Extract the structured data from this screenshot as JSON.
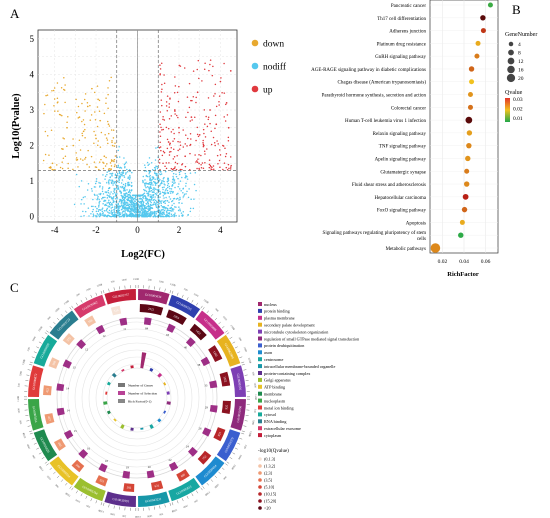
{
  "panel_labels": {
    "a": "A",
    "b": "B",
    "c": "C"
  },
  "colors": {
    "down": "#e8a92f",
    "nodiff": "#55c8ee",
    "up": "#e0393e"
  },
  "chart_data": [
    {
      "panel": "A",
      "type": "scatter",
      "title": "",
      "xlabel": "Log2(FC)",
      "ylabel": "Log10(Pvalue)",
      "xlim": [
        -4.8,
        4.8
      ],
      "ylim": [
        -0.15,
        5.25
      ],
      "x_ticks": [
        -4,
        -2,
        0,
        2,
        4
      ],
      "y_ticks": [
        0,
        1,
        2,
        3,
        4,
        5
      ],
      "grid": true,
      "threshold_lines": {
        "x": [
          -1,
          1
        ],
        "y": [
          1.3
        ]
      },
      "legend_position": "right",
      "series": [
        {
          "name": "down",
          "color": "#e8a92f",
          "n": 150,
          "points": [
            [
              -1.8,
              2.7
            ],
            [
              -2.4,
              3.1
            ],
            [
              -2.0,
              2.2
            ],
            [
              -1.4,
              2.6
            ],
            [
              -3.1,
              2.0
            ],
            [
              -2.9,
              1.6
            ],
            [
              -3.6,
              1.9
            ],
            [
              -1.9,
              3.3
            ],
            [
              -4.1,
              1.5
            ],
            [
              -2.6,
              2.4
            ],
            [
              -2.2,
              3.6
            ],
            [
              -1.2,
              2.0
            ],
            [
              -3.4,
              2.5
            ],
            [
              -2.8,
              2.8
            ],
            [
              -1.6,
              1.7
            ]
          ]
        },
        {
          "name": "nodiff",
          "color": "#55c8ee",
          "n": 1400
        },
        {
          "name": "up",
          "color": "#e0393e",
          "n": 230,
          "points": [
            [
              2.0,
              2.5
            ],
            [
              1.5,
              2.1
            ],
            [
              2.6,
              2.8
            ],
            [
              3.2,
              2.0
            ],
            [
              3.8,
              2.6
            ],
            [
              4.3,
              3.2
            ],
            [
              1.8,
              3.0
            ],
            [
              2.9,
              3.5
            ],
            [
              4.5,
              4.1
            ],
            [
              1.3,
              1.8
            ],
            [
              3.5,
              3.0
            ],
            [
              4.0,
              3.8
            ],
            [
              2.3,
              1.7
            ],
            [
              3.0,
              2.3
            ],
            [
              4.4,
              2.5
            ]
          ]
        }
      ]
    },
    {
      "panel": "B",
      "type": "scatter",
      "title": "",
      "xlabel": "RichFactor",
      "ylabel": "",
      "xlim": [
        0.0085,
        0.0715
      ],
      "x_ticks": [
        0.02,
        0.04,
        0.06
      ],
      "x_tick_labels": [
        "0.02",
        "0.04",
        "0.06"
      ],
      "grid": true,
      "legend_position": "right",
      "size_legend_title": "GeneNumber",
      "size_legend_values": [
        "4",
        "8",
        "12",
        "16",
        "20"
      ],
      "color_legend_title": "Qvalue",
      "color_legend_values": [
        "0.03",
        "0.02",
        "0.01"
      ],
      "categories": [
        "Pancreatic cancer",
        "Th17 cell differentiation",
        "Adherens junction",
        "Platinum drug resistance",
        "GnRH signaling pathway",
        "AGE-RAGE signaling pathway in diabetic complications",
        "Chagas disease (American trypanosomiasis)",
        "Parathyroid hormone synthesis, secretion and action",
        "Colorectal cancer",
        "Human T-cell leukemia virus 1 infection",
        "Relaxin signaling pathway",
        "TNF signaling pathway",
        "Apelin signaling pathway",
        "Glutamatergic synapse",
        "Fluid shear stress and atherosclerosis",
        "Hepatocellular carcinoma",
        "FoxO signaling pathway",
        "Apoptosis",
        "Signaling pathways regulating pluripotency of stem cells",
        "Metabolic pathways"
      ],
      "rich_factor": [
        0.0645,
        0.0575,
        0.058,
        0.053,
        0.052,
        0.047,
        0.047,
        0.046,
        0.046,
        0.0445,
        0.045,
        0.0445,
        0.0435,
        0.0425,
        0.0425,
        0.0415,
        0.0405,
        0.0385,
        0.037,
        0.0135
      ],
      "gene_number": [
        4,
        5,
        4,
        4,
        4,
        5,
        4,
        4,
        4,
        9,
        5,
        5,
        5,
        4,
        5,
        6,
        5,
        4,
        5,
        22
      ],
      "qvalue": [
        0.033,
        0.004,
        0.008,
        0.018,
        0.014,
        0.012,
        0.02,
        0.016,
        0.013,
        0.003,
        0.017,
        0.015,
        0.016,
        0.014,
        0.015,
        0.006,
        0.012,
        0.018,
        0.034,
        0.015
      ]
    },
    {
      "panel": "C",
      "type": "circular",
      "title": "",
      "inner_legend": [
        "Number of Genes",
        "Number of Selection",
        "Rich Factor(0-1)"
      ],
      "outer_ticks": [
        "0",
        "500",
        "1000",
        "1500",
        "2000",
        "2500"
      ],
      "categories": [
        "nucleus",
        "protein binding",
        "plasma membrane",
        "secondary palate development",
        "microtubule cytoskeleton organization",
        "regulation of small GTPase mediated signal transduction",
        "protein deubiquitination",
        "axon",
        "centrosome",
        "intracellular membrane-bounded organelle",
        "protein-containing complex",
        "Golgi apparatus",
        "ATP binding",
        "membrane",
        "nucleoplasm",
        "metal ion binding",
        "cytosol",
        "RNA binding",
        "extracellular exosome",
        "cytoplasm"
      ],
      "category_colors": [
        "#a0286e",
        "#2f3fae",
        "#c62f8a",
        "#e7b320",
        "#7d3fb4",
        "#8e2a7c",
        "#3b5fcf",
        "#1e8bd0",
        "#18a7a2",
        "#1797a8",
        "#5d2f8c",
        "#9bbf2f",
        "#e8c228",
        "#1f8a4f",
        "#3aa548",
        "#e03a3a",
        "#17aa9a",
        "#2a7d8f",
        "#d63a6b",
        "#c41e3a"
      ],
      "gene_counts": [
        "2522",
        "1963",
        "1452",
        "1285",
        "1052",
        "925",
        "821",
        "752",
        "690",
        "631",
        "585",
        "553",
        "506",
        "481",
        "437",
        "422",
        "398",
        "375",
        "356",
        "316"
      ],
      "selection_counts": [
        "84",
        "63",
        "40",
        "38",
        "33",
        "29",
        "26",
        "24",
        "22",
        "20",
        "19",
        "18",
        "16",
        "15",
        "14",
        "14",
        "13",
        "12",
        "12",
        "11"
      ],
      "go_ids": [
        "GO:0005634",
        "GO:0005515",
        "GO:0005886",
        "GO:0062009",
        "GO:0000226",
        "GO:0051056",
        "GO:0016579",
        "GO:0030424",
        "GO:0005813",
        "GO:0043231",
        "GO:0032991",
        "GO:0005794",
        "GO:0005524",
        "GO:0016020",
        "GO:0005654",
        "GO:0046872",
        "GO:0005829",
        "GO:0003723",
        "GO:0070062",
        "GO:0005737"
      ],
      "qvalue_legend_title": "-log10(Qvalue)",
      "qvalue_bins": [
        "(0,1.3]",
        "(1.3,2]",
        "(2,3]",
        "(3,5]",
        "(5,10]",
        "(10,15]",
        "(15,20]",
        ">20"
      ],
      "qvalue_colors": [
        "#f6e3d7",
        "#f4c3a6",
        "#ef9a73",
        "#e5704f",
        "#d54536",
        "#b8262a",
        "#8b1220",
        "#5c0715"
      ]
    }
  ]
}
